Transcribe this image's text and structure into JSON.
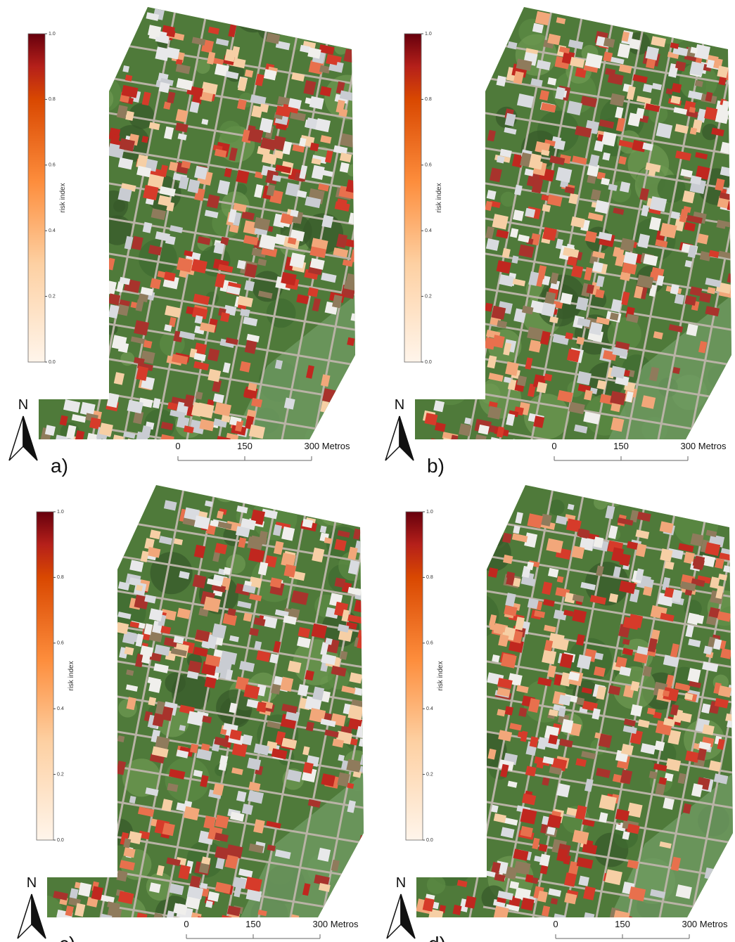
{
  "colorbar": {
    "label": "risk index",
    "ticks": [
      {
        "value": 0,
        "label": "0.0"
      },
      {
        "value": 0.2,
        "label": "0.2"
      },
      {
        "value": 0.4,
        "label": "0.4"
      },
      {
        "value": 0.6,
        "label": "0.6"
      },
      {
        "value": 0.8,
        "label": "0.8"
      },
      {
        "value": 1,
        "label": "1.0"
      }
    ]
  },
  "north": "N",
  "scale": {
    "ticks": [
      0,
      150,
      {
        "value": 300,
        "label": "300 Metros"
      }
    ]
  },
  "panels": [
    {
      "label": "a)"
    },
    {
      "label": "b)"
    },
    {
      "label": "c)"
    },
    {
      "label": "d)"
    }
  ]
}
